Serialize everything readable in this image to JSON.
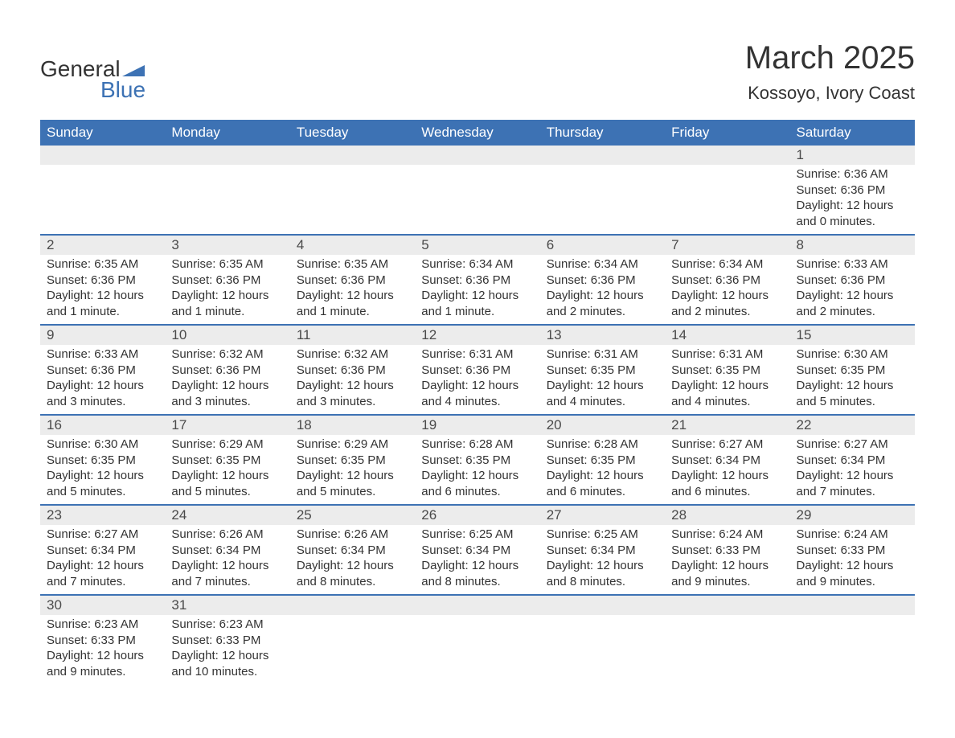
{
  "brand": {
    "word1": "General",
    "word2": "Blue",
    "accent_color": "#3d72b4"
  },
  "title": "March 2025",
  "location": "Kossoyo, Ivory Coast",
  "colors": {
    "header_bg": "#3d72b4",
    "header_text": "#ffffff",
    "daynum_bg": "#ececec",
    "text": "#333333",
    "row_border": "#3d72b4"
  },
  "typography": {
    "title_fontsize_pt": 30,
    "location_fontsize_pt": 16,
    "header_fontsize_pt": 13,
    "daynum_fontsize_pt": 13,
    "detail_fontsize_pt": 11
  },
  "day_headers": [
    "Sunday",
    "Monday",
    "Tuesday",
    "Wednesday",
    "Thursday",
    "Friday",
    "Saturday"
  ],
  "weeks": [
    [
      null,
      null,
      null,
      null,
      null,
      null,
      {
        "n": "1",
        "sunrise": "6:36 AM",
        "sunset": "6:36 PM",
        "daylight": "12 hours and 0 minutes."
      }
    ],
    [
      {
        "n": "2",
        "sunrise": "6:35 AM",
        "sunset": "6:36 PM",
        "daylight": "12 hours and 1 minute."
      },
      {
        "n": "3",
        "sunrise": "6:35 AM",
        "sunset": "6:36 PM",
        "daylight": "12 hours and 1 minute."
      },
      {
        "n": "4",
        "sunrise": "6:35 AM",
        "sunset": "6:36 PM",
        "daylight": "12 hours and 1 minute."
      },
      {
        "n": "5",
        "sunrise": "6:34 AM",
        "sunset": "6:36 PM",
        "daylight": "12 hours and 1 minute."
      },
      {
        "n": "6",
        "sunrise": "6:34 AM",
        "sunset": "6:36 PM",
        "daylight": "12 hours and 2 minutes."
      },
      {
        "n": "7",
        "sunrise": "6:34 AM",
        "sunset": "6:36 PM",
        "daylight": "12 hours and 2 minutes."
      },
      {
        "n": "8",
        "sunrise": "6:33 AM",
        "sunset": "6:36 PM",
        "daylight": "12 hours and 2 minutes."
      }
    ],
    [
      {
        "n": "9",
        "sunrise": "6:33 AM",
        "sunset": "6:36 PM",
        "daylight": "12 hours and 3 minutes."
      },
      {
        "n": "10",
        "sunrise": "6:32 AM",
        "sunset": "6:36 PM",
        "daylight": "12 hours and 3 minutes."
      },
      {
        "n": "11",
        "sunrise": "6:32 AM",
        "sunset": "6:36 PM",
        "daylight": "12 hours and 3 minutes."
      },
      {
        "n": "12",
        "sunrise": "6:31 AM",
        "sunset": "6:36 PM",
        "daylight": "12 hours and 4 minutes."
      },
      {
        "n": "13",
        "sunrise": "6:31 AM",
        "sunset": "6:35 PM",
        "daylight": "12 hours and 4 minutes."
      },
      {
        "n": "14",
        "sunrise": "6:31 AM",
        "sunset": "6:35 PM",
        "daylight": "12 hours and 4 minutes."
      },
      {
        "n": "15",
        "sunrise": "6:30 AM",
        "sunset": "6:35 PM",
        "daylight": "12 hours and 5 minutes."
      }
    ],
    [
      {
        "n": "16",
        "sunrise": "6:30 AM",
        "sunset": "6:35 PM",
        "daylight": "12 hours and 5 minutes."
      },
      {
        "n": "17",
        "sunrise": "6:29 AM",
        "sunset": "6:35 PM",
        "daylight": "12 hours and 5 minutes."
      },
      {
        "n": "18",
        "sunrise": "6:29 AM",
        "sunset": "6:35 PM",
        "daylight": "12 hours and 5 minutes."
      },
      {
        "n": "19",
        "sunrise": "6:28 AM",
        "sunset": "6:35 PM",
        "daylight": "12 hours and 6 minutes."
      },
      {
        "n": "20",
        "sunrise": "6:28 AM",
        "sunset": "6:35 PM",
        "daylight": "12 hours and 6 minutes."
      },
      {
        "n": "21",
        "sunrise": "6:27 AM",
        "sunset": "6:34 PM",
        "daylight": "12 hours and 6 minutes."
      },
      {
        "n": "22",
        "sunrise": "6:27 AM",
        "sunset": "6:34 PM",
        "daylight": "12 hours and 7 minutes."
      }
    ],
    [
      {
        "n": "23",
        "sunrise": "6:27 AM",
        "sunset": "6:34 PM",
        "daylight": "12 hours and 7 minutes."
      },
      {
        "n": "24",
        "sunrise": "6:26 AM",
        "sunset": "6:34 PM",
        "daylight": "12 hours and 7 minutes."
      },
      {
        "n": "25",
        "sunrise": "6:26 AM",
        "sunset": "6:34 PM",
        "daylight": "12 hours and 8 minutes."
      },
      {
        "n": "26",
        "sunrise": "6:25 AM",
        "sunset": "6:34 PM",
        "daylight": "12 hours and 8 minutes."
      },
      {
        "n": "27",
        "sunrise": "6:25 AM",
        "sunset": "6:34 PM",
        "daylight": "12 hours and 8 minutes."
      },
      {
        "n": "28",
        "sunrise": "6:24 AM",
        "sunset": "6:33 PM",
        "daylight": "12 hours and 9 minutes."
      },
      {
        "n": "29",
        "sunrise": "6:24 AM",
        "sunset": "6:33 PM",
        "daylight": "12 hours and 9 minutes."
      }
    ],
    [
      {
        "n": "30",
        "sunrise": "6:23 AM",
        "sunset": "6:33 PM",
        "daylight": "12 hours and 9 minutes."
      },
      {
        "n": "31",
        "sunrise": "6:23 AM",
        "sunset": "6:33 PM",
        "daylight": "12 hours and 10 minutes."
      },
      null,
      null,
      null,
      null,
      null
    ]
  ],
  "labels": {
    "sunrise": "Sunrise:",
    "sunset": "Sunset:",
    "daylight": "Daylight:"
  }
}
